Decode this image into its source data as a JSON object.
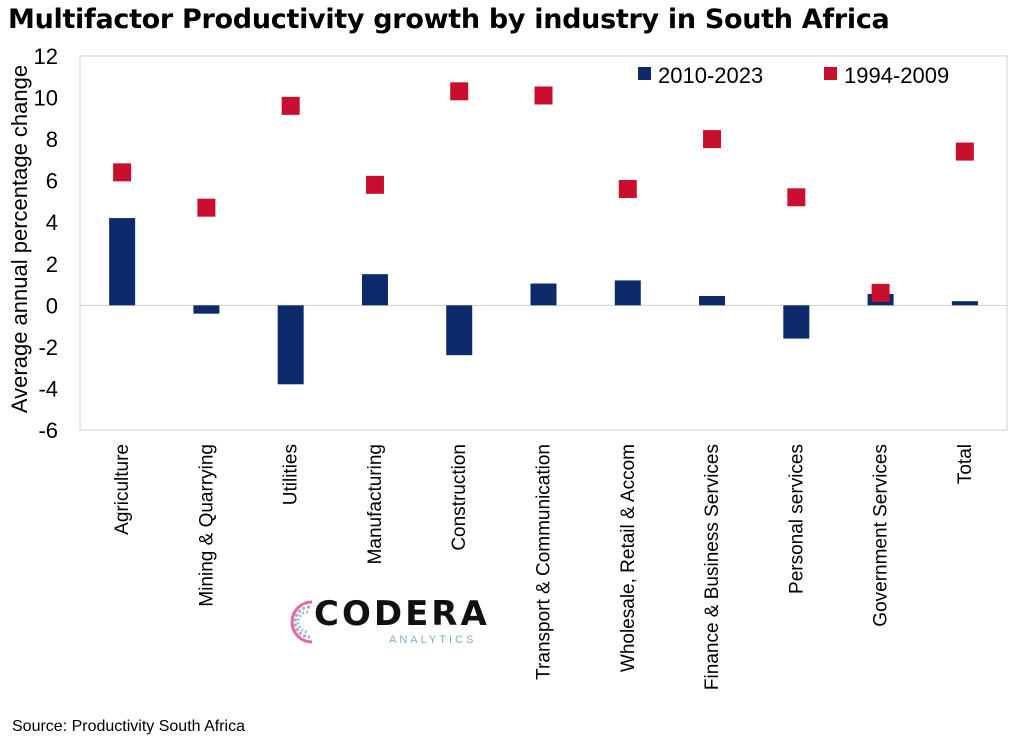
{
  "title": "Multifactor Productivity growth by industry in South Africa",
  "source": "Source: Productivity South Africa",
  "logo": {
    "name": "CODERA",
    "sub": "ANALYTICS"
  },
  "colors": {
    "series_2010_2023": "#0d2a6b",
    "series_1994_2009": "#c8102e",
    "axis": "#d0d0d0"
  },
  "chart_data": {
    "type": "bar",
    "ylabel": "Average annual percentage change",
    "ylim": [
      -6,
      12
    ],
    "yticks": [
      -6,
      -4,
      -2,
      0,
      2,
      4,
      6,
      8,
      10,
      12
    ],
    "legend_position": "top-right",
    "grid": false,
    "categories": [
      "Agriculture",
      "Mining & Quarrying",
      "Utilities",
      "Manufacturing",
      "Construction",
      "Transport & Communication",
      "Wholesale, Retail & Accom",
      "Finance & Business Services",
      "Personal services",
      "Government Services",
      "Total"
    ],
    "series": [
      {
        "name": "2010-2023",
        "mark": "bar",
        "values": [
          4.2,
          -0.4,
          -3.8,
          1.5,
          -2.4,
          1.05,
          1.2,
          0.45,
          -1.6,
          0.55,
          0.2
        ]
      },
      {
        "name": "1994-2009",
        "mark": "square",
        "values": [
          6.4,
          4.7,
          9.6,
          5.8,
          10.3,
          10.1,
          5.6,
          8.0,
          5.2,
          0.6,
          7.4
        ]
      }
    ]
  }
}
